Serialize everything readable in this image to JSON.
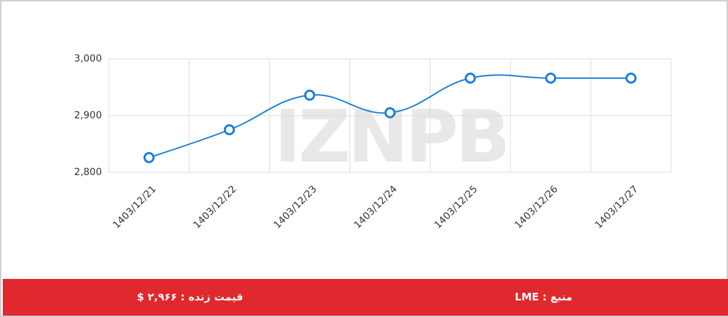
{
  "chart_data": {
    "type": "line",
    "categories": [
      "1403/12/21",
      "1403/12/22",
      "1403/12/23",
      "1403/12/24",
      "1403/12/25",
      "1403/12/26",
      "1403/12/27"
    ],
    "values": [
      2826,
      2875,
      2936,
      2905,
      2966,
      2966,
      2966
    ],
    "color": "#1a7fd4",
    "ylim": [
      2800,
      3000
    ],
    "yticks": [
      {
        "value": 2800,
        "label": "2,800"
      },
      {
        "value": 2900,
        "label": "2,900"
      },
      {
        "value": 3000,
        "label": "3,000"
      }
    ],
    "grid": true,
    "watermark": "IZNPB"
  },
  "footer": {
    "price": "قیمت زنده : ۲,۹۶۶ $",
    "source": "منبع : LME"
  }
}
